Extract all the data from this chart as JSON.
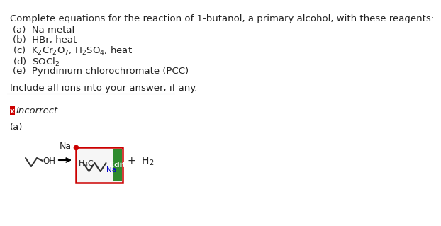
{
  "bg_color": "#ffffff",
  "title_text": "Complete equations for the reaction of 1-butanol, a primary alcohol, with these reagents:",
  "include_text": "Include all ions into your answer, if any.",
  "incorrect_text": "Incorrect.",
  "part_a_label": "(a)",
  "reagent_text": "Na",
  "edit_text": "Edit",
  "edit_bg": "#2e8b2e",
  "edit_fg": "#ffffff",
  "incorrect_box_bg": "#cc0000",
  "reaction_box_color": "#cc0000",
  "na_text_color": "#0000cc",
  "font_size_title": 9.5,
  "font_size_items": 9.5,
  "separator_color": "#cccccc",
  "mol_color": "#333333",
  "text_color": "#222222"
}
